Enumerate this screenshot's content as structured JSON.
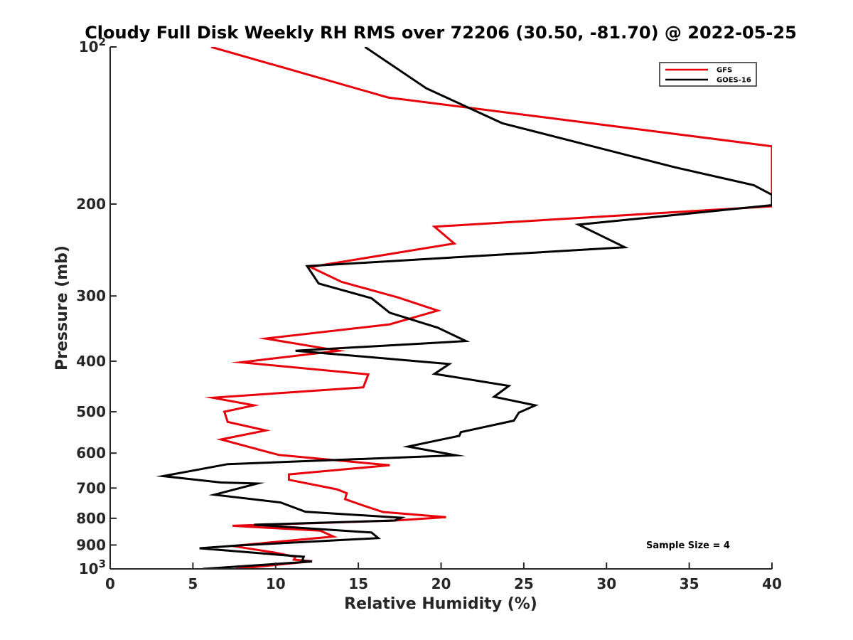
{
  "chart_data": {
    "type": "line",
    "title": "Cloudy Full Disk Weekly RH RMS over 72206 (30.50, -81.70) @ 2022-05-25",
    "xlabel": "Relative Humidity (%)",
    "ylabel": "Pressure (mb)",
    "xlim": [
      0,
      40
    ],
    "ylim": [
      100,
      1000
    ],
    "yscale": "log",
    "y_reversed": true,
    "x_ticks": [
      0,
      5,
      10,
      15,
      20,
      25,
      30,
      35,
      40
    ],
    "x_tick_labels": [
      "0",
      "5",
      "10",
      "15",
      "20",
      "25",
      "30",
      "35",
      "40"
    ],
    "y_ticks": [
      100,
      200,
      300,
      400,
      500,
      600,
      700,
      800,
      900,
      1000
    ],
    "y_tick_labels": [
      {
        "base": "10",
        "exp": "2"
      },
      {
        "base": "200",
        "exp": ""
      },
      {
        "base": "300",
        "exp": ""
      },
      {
        "base": "400",
        "exp": ""
      },
      {
        "base": "500",
        "exp": ""
      },
      {
        "base": "600",
        "exp": ""
      },
      {
        "base": "700",
        "exp": ""
      },
      {
        "base": "800",
        "exp": ""
      },
      {
        "base": "900",
        "exp": ""
      },
      {
        "base": "10",
        "exp": "3"
      }
    ],
    "grid": false,
    "legend_position": "top-right",
    "annotation": "Sample Size = 4",
    "series": [
      {
        "name": "GFS",
        "color": "#e8000b",
        "points": [
          [
            6.1,
            100
          ],
          [
            16.8,
            125
          ],
          [
            40,
            155
          ],
          [
            40,
            202
          ],
          [
            19.6,
            221
          ],
          [
            20.8,
            238
          ],
          [
            12.1,
            264
          ],
          [
            14.0,
            282
          ],
          [
            17.4,
            302
          ],
          [
            19.8,
            320
          ],
          [
            16.9,
            340
          ],
          [
            9.4,
            362
          ],
          [
            13.8,
            382
          ],
          [
            7.9,
            402
          ],
          [
            15.6,
            424
          ],
          [
            15.3,
            449
          ],
          [
            6.2,
            470
          ],
          [
            8.7,
            486
          ],
          [
            6.9,
            500
          ],
          [
            7.1,
            523
          ],
          [
            9.4,
            543
          ],
          [
            6.7,
            565
          ],
          [
            10.2,
            605
          ],
          [
            16.9,
            633
          ],
          [
            10.8,
            659
          ],
          [
            10.8,
            675
          ],
          [
            13.7,
            704
          ],
          [
            14.3,
            716
          ],
          [
            14.2,
            735
          ],
          [
            15.4,
            758
          ],
          [
            16.5,
            778
          ],
          [
            20.3,
            796
          ],
          [
            17.2,
            808
          ],
          [
            7.4,
            827
          ],
          [
            12.7,
            845
          ],
          [
            13.5,
            867
          ],
          [
            7.4,
            904
          ],
          [
            9.9,
            930
          ],
          [
            11.2,
            948
          ],
          [
            11.1,
            960
          ],
          [
            12.2,
            967
          ],
          [
            9.0,
            990
          ],
          [
            7.6,
            1000
          ]
        ]
      },
      {
        "name": "GOES-16",
        "color": "#000000",
        "points": [
          [
            15.4,
            100
          ],
          [
            19.1,
            120
          ],
          [
            23.7,
            140
          ],
          [
            34.1,
            170
          ],
          [
            38.9,
            184
          ],
          [
            40,
            192
          ],
          [
            40,
            201
          ],
          [
            28.3,
            219
          ],
          [
            31.1,
            242
          ],
          [
            11.9,
            263
          ],
          [
            12.6,
            284
          ],
          [
            15.8,
            303
          ],
          [
            16.9,
            323
          ],
          [
            19.8,
            345
          ],
          [
            21.5,
            366
          ],
          [
            11.2,
            382
          ],
          [
            20.5,
            405
          ],
          [
            19.6,
            423
          ],
          [
            24.1,
            446
          ],
          [
            23.2,
            468
          ],
          [
            25.7,
            486
          ],
          [
            24.7,
            502
          ],
          [
            24.4,
            520
          ],
          [
            21.2,
            547
          ],
          [
            21.1,
            556
          ],
          [
            18.0,
            583
          ],
          [
            20.9,
            606
          ],
          [
            7.1,
            630
          ],
          [
            3.2,
            664
          ],
          [
            6.7,
            683
          ],
          [
            8.9,
            686
          ],
          [
            6.3,
            721
          ],
          [
            10.3,
            746
          ],
          [
            11.8,
            777
          ],
          [
            17.6,
            798
          ],
          [
            17.2,
            808
          ],
          [
            8.7,
            823
          ],
          [
            15.8,
            852
          ],
          [
            16.2,
            873
          ],
          [
            7.7,
            902
          ],
          [
            5.4,
            913
          ],
          [
            11.7,
            948
          ],
          [
            11.6,
            965
          ],
          [
            12.2,
            968
          ],
          [
            5.6,
            1000
          ]
        ]
      }
    ]
  }
}
